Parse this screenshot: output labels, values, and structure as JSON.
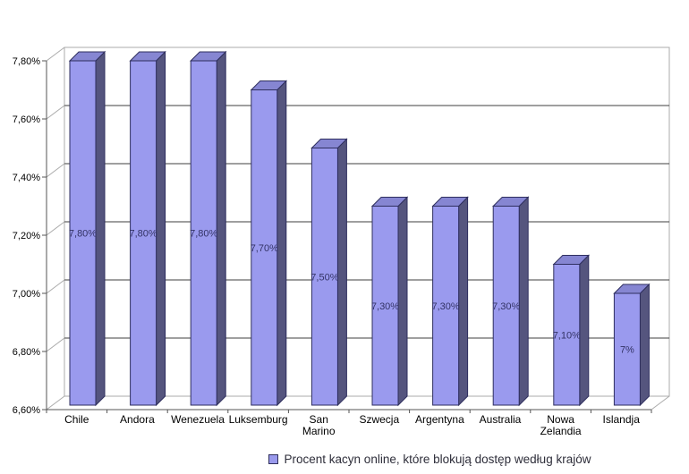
{
  "chart_data": {
    "type": "bar",
    "title": "",
    "xlabel": "",
    "ylabel": "",
    "categories": [
      "Chile",
      "Andora",
      "Wenezuela",
      "Luksemburg",
      "San Marino",
      "Szwecja",
      "Argentyna",
      "Australia",
      "Nowa Zelandia",
      "Islandja"
    ],
    "values": [
      7.8,
      7.8,
      7.8,
      7.7,
      7.5,
      7.3,
      7.3,
      7.3,
      7.1,
      7.0
    ],
    "bar_labels": [
      "7,80%",
      "7,80%",
      "7,80%",
      "7,70%",
      "7,50%",
      "7,30%",
      "7,30%",
      "7,30%",
      "7,10%",
      "7%"
    ],
    "y_ticks": [
      "7,80%",
      "7,60%",
      "7,40%",
      "7,20%",
      "7,00%",
      "6,80%",
      "6,60%"
    ],
    "y_tick_values": [
      7.8,
      7.6,
      7.4,
      7.2,
      7.0,
      6.8,
      6.6
    ],
    "ylim": [
      6.6,
      7.8
    ],
    "grid": true,
    "style_3d": true,
    "legend_position": "bottom",
    "legend": [
      {
        "label": "Procent kacyn online, które blokują dostęp według krajów",
        "color": "#9999EC"
      }
    ],
    "colors": {
      "bar_front": "#9A9AEE",
      "bar_top": "#8686D2",
      "bar_side": "#55557E",
      "bar_border": "#2F2F5F",
      "gridline": "#3f3f3f",
      "frame": "#ababab",
      "axis_line": "#555555",
      "bar_label_text": "#333366",
      "axis_text": "#000000",
      "legend_text": "#2e2e3a"
    }
  }
}
